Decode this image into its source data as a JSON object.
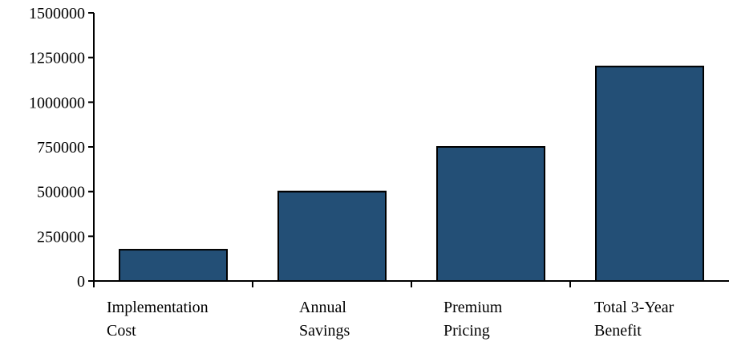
{
  "chart_data": {
    "type": "bar",
    "categories": [
      [
        "Implementation",
        "Cost"
      ],
      [
        "Annual",
        "Savings"
      ],
      [
        "Premium",
        "Pricing"
      ],
      [
        "Total 3-Year",
        "Benefit"
      ]
    ],
    "values": [
      175000,
      500000,
      750000,
      1200000
    ],
    "yticks": [
      "0",
      "250000",
      "500000",
      "750000",
      "1000000",
      "1250000",
      "1500000"
    ],
    "ylim": [
      0,
      1500000
    ],
    "title": "",
    "xlabel": "",
    "ylabel": "",
    "grid": false,
    "bar_color": "#234f76",
    "bar_edge_color": "#000000"
  }
}
